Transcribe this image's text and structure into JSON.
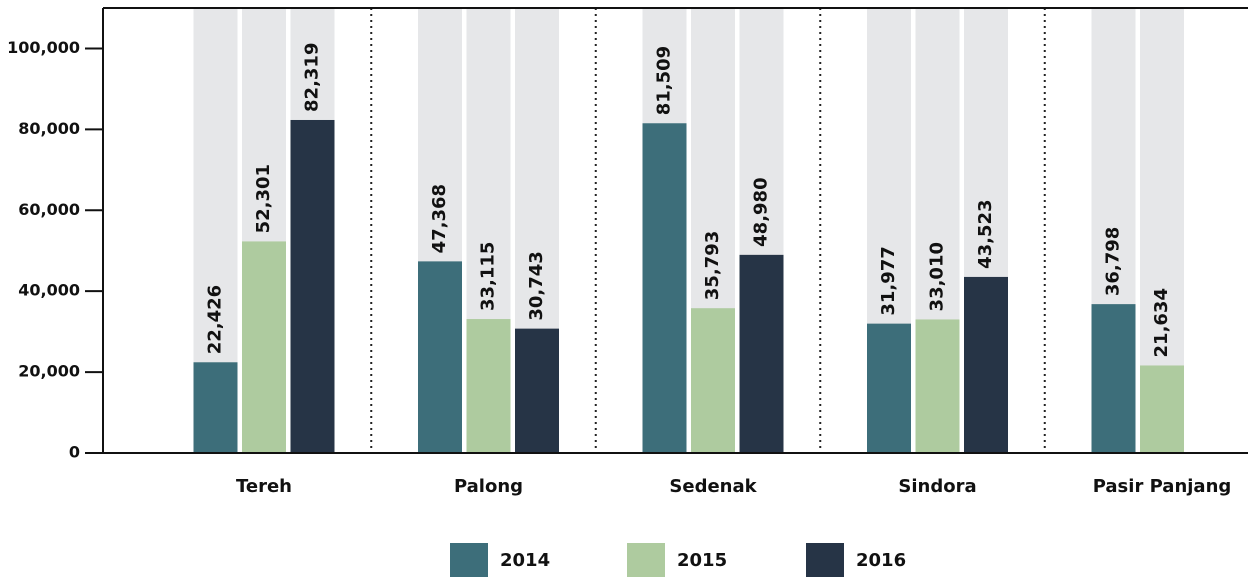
{
  "chart_data": {
    "type": "bar",
    "categories": [
      "Tereh",
      "Palong",
      "Sedenak",
      "Sindora",
      "Pasir Panjang"
    ],
    "series": [
      {
        "name": "2014",
        "color": "#3d6e7a",
        "values": [
          22426,
          47368,
          81509,
          31977,
          36798
        ],
        "value_labels": [
          "22,426",
          "47,368",
          "81,509",
          "31,977",
          "36,798"
        ]
      },
      {
        "name": "2015",
        "color": "#aecb9f",
        "values": [
          52301,
          33115,
          35793,
          33010,
          21634
        ],
        "value_labels": [
          "52,301",
          "33,115",
          "35,793",
          "33,010",
          "21,634"
        ]
      },
      {
        "name": "2016",
        "color": "#263446",
        "values": [
          82319,
          30743,
          48980,
          43523,
          null
        ],
        "value_labels": [
          "82,319",
          "30,743",
          "48,980",
          "43,523",
          null
        ]
      }
    ],
    "ylim": [
      0,
      110000
    ],
    "yticks": [
      0,
      {
        "value": 20000,
        "label": "20,000"
      },
      {
        "value": 40000,
        "label": "40,000"
      },
      {
        "value": 60000,
        "label": "60,000"
      },
      {
        "value": 80000,
        "label": "80,000"
      },
      {
        "value": 100000,
        "label": "100,000"
      }
    ],
    "legend": "bottom"
  }
}
